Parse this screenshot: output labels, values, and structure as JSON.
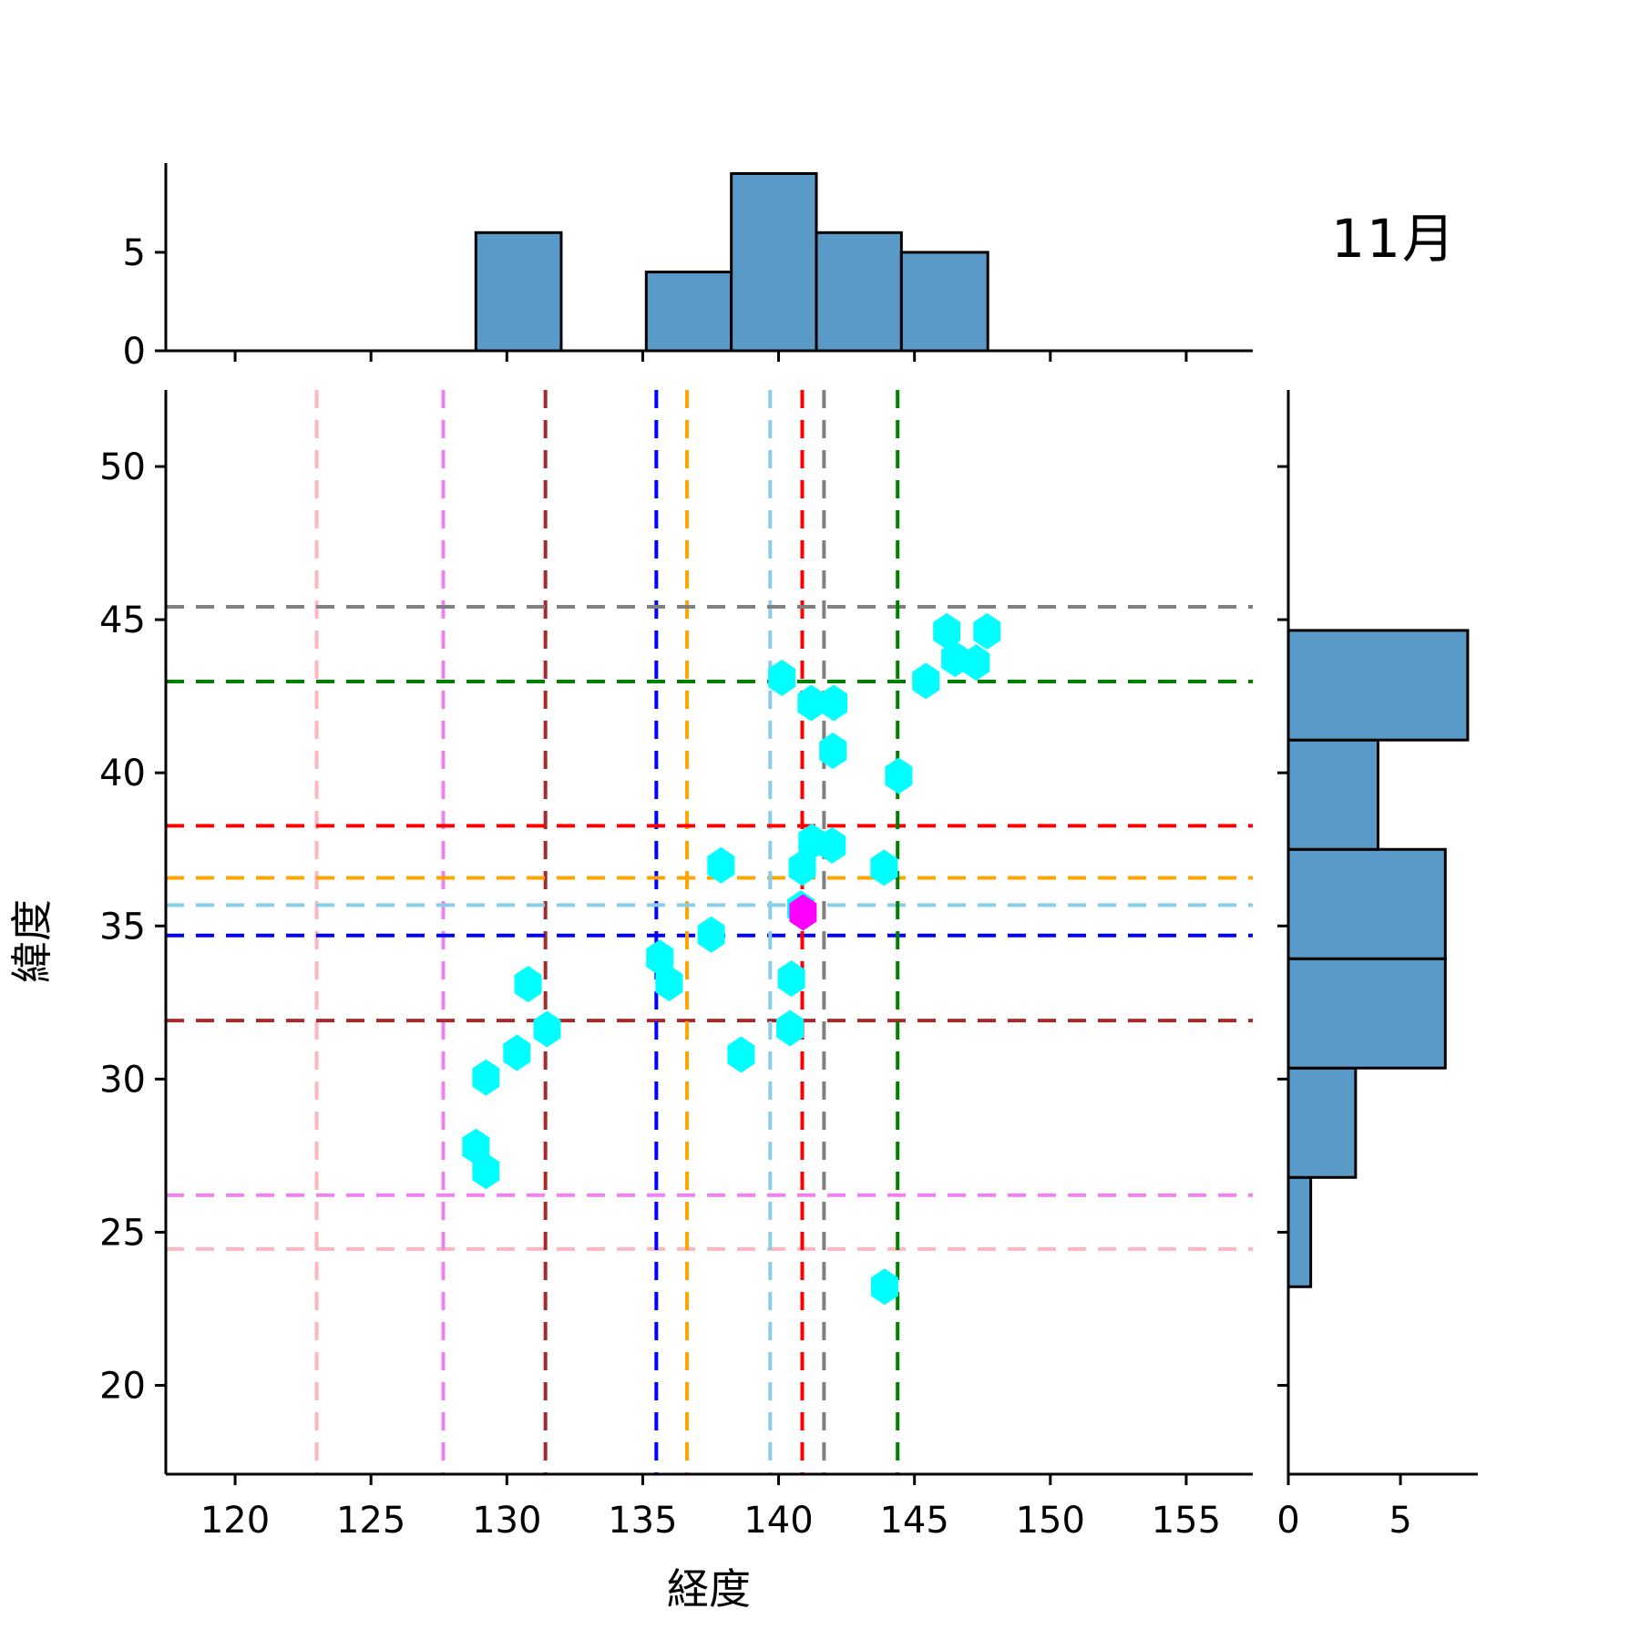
{
  "title": "11月",
  "chart_data": {
    "type": "scatter",
    "subtype": "joint-plot-with-marginal-histograms",
    "title": "11月",
    "main": {
      "xlabel": "経度",
      "ylabel": "緯度",
      "xlim": [
        117.45,
        157.45
      ],
      "ylim": [
        17.1,
        52.5
      ],
      "xticks": [
        120,
        125,
        130,
        135,
        140,
        145,
        150,
        155
      ],
      "yticks": [
        20,
        25,
        30,
        35,
        40,
        45,
        50
      ],
      "grid": false,
      "scatter": {
        "marker": "hexagon",
        "color": "#00ffff",
        "points": [
          [
            128.86,
            27.79
          ],
          [
            129.23,
            27.0
          ],
          [
            129.23,
            30.05
          ],
          [
            130.37,
            30.86
          ],
          [
            131.48,
            31.63
          ],
          [
            130.78,
            33.1
          ],
          [
            135.63,
            33.96
          ],
          [
            135.97,
            33.13
          ],
          [
            137.52,
            34.72
          ],
          [
            137.88,
            36.98
          ],
          [
            138.62,
            30.8
          ],
          [
            140.42,
            31.66
          ],
          [
            140.47,
            33.28
          ],
          [
            140.82,
            35.57
          ],
          [
            140.87,
            36.9
          ],
          [
            141.23,
            37.75
          ],
          [
            141.97,
            37.63
          ],
          [
            143.88,
            36.9
          ],
          [
            140.12,
            43.1
          ],
          [
            141.2,
            42.28
          ],
          [
            142.03,
            42.28
          ],
          [
            142.0,
            40.72
          ],
          [
            143.9,
            23.22
          ],
          [
            144.42,
            39.9
          ],
          [
            145.42,
            43.0
          ],
          [
            146.19,
            44.62
          ],
          [
            146.49,
            43.72
          ],
          [
            147.27,
            43.6
          ],
          [
            147.67,
            44.62
          ]
        ]
      },
      "highlight_point": {
        "marker": "hexagon",
        "color": "#ff00ff",
        "point": [
          140.9,
          35.44
        ]
      },
      "crosshair_lines": {
        "style": "dashed",
        "lines": [
          {
            "color": "#ffb6c1",
            "lon": 123.0,
            "lat": 24.45
          },
          {
            "color": "#ee82ee",
            "lon": 127.66,
            "lat": 26.21
          },
          {
            "color": "#a52a2a",
            "lon": 131.42,
            "lat": 31.91
          },
          {
            "color": "#0000ff",
            "lon": 135.5,
            "lat": 34.69
          },
          {
            "color": "#ffa500",
            "lon": 136.63,
            "lat": 36.57
          },
          {
            "color": "#87ceeb",
            "lon": 139.69,
            "lat": 35.68
          },
          {
            "color": "#ff0000",
            "lon": 140.87,
            "lat": 38.27
          },
          {
            "color": "#808080",
            "lon": 141.67,
            "lat": 45.42
          },
          {
            "color": "#008000",
            "lon": 144.38,
            "lat": 42.98
          }
        ]
      }
    },
    "top_histogram": {
      "type": "bar",
      "orientation": "vertical",
      "bar_color": "#5a9ac8",
      "edge_color": "#000000",
      "ylim": [
        0,
        9.53
      ],
      "yticks": [
        0,
        5
      ],
      "bin_edges": [
        128.86,
        132.0,
        135.13,
        138.26,
        141.39,
        144.52,
        147.7
      ],
      "counts": [
        6,
        0,
        4,
        9,
        6,
        5
      ]
    },
    "right_histogram": {
      "type": "bar",
      "orientation": "horizontal",
      "bar_color": "#5a9ac8",
      "edge_color": "#000000",
      "xlim": [
        0,
        8.45
      ],
      "xticks": [
        0,
        5
      ],
      "bin_edges": [
        23.22,
        26.79,
        30.36,
        33.93,
        37.5,
        41.07,
        44.65
      ],
      "counts": [
        1,
        3,
        7,
        7,
        4,
        8
      ]
    }
  }
}
